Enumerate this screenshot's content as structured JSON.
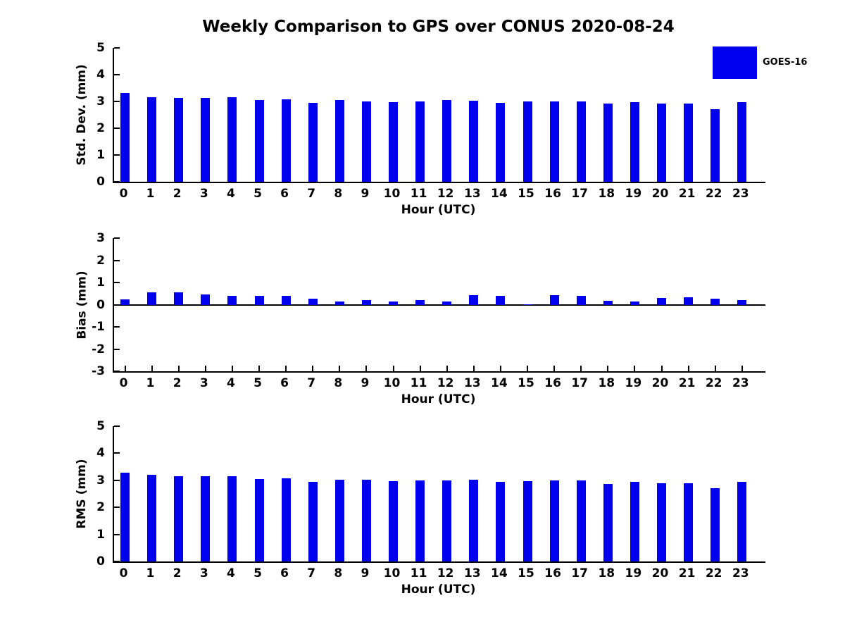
{
  "title": "Weekly Comparison to GPS over CONUS 2020-08-24",
  "legend": {
    "label": "GOES-16",
    "color": "#0000ee"
  },
  "chart_data": [
    {
      "type": "bar",
      "name": "std-dev",
      "ylabel": "Std. Dev. (mm)",
      "xlabel": "Hour (UTC)",
      "ylim": [
        0,
        5
      ],
      "yticks": [
        0,
        1,
        2,
        3,
        4,
        5
      ],
      "grid": false,
      "legend_position": "upper right outside",
      "categories": [
        0,
        1,
        2,
        3,
        4,
        5,
        6,
        7,
        8,
        9,
        10,
        11,
        12,
        13,
        14,
        15,
        16,
        17,
        18,
        19,
        20,
        21,
        22,
        23
      ],
      "series": [
        {
          "name": "GOES-16",
          "values": [
            3.31,
            3.17,
            3.12,
            3.12,
            3.15,
            3.04,
            3.07,
            2.94,
            3.04,
            3.01,
            2.97,
            3.01,
            3.04,
            3.02,
            2.96,
            3.01,
            3.01,
            2.99,
            2.91,
            2.98,
            2.91,
            2.91,
            2.72,
            2.98
          ]
        }
      ]
    },
    {
      "type": "bar",
      "name": "bias",
      "ylabel": "Bias (mm)",
      "xlabel": "Hour (UTC)",
      "ylim": [
        -3,
        3
      ],
      "yticks": [
        -3,
        -2,
        -1,
        0,
        1,
        2,
        3
      ],
      "grid": false,
      "categories": [
        0,
        1,
        2,
        3,
        4,
        5,
        6,
        7,
        8,
        9,
        10,
        11,
        12,
        13,
        14,
        15,
        16,
        17,
        18,
        19,
        20,
        21,
        22,
        23
      ],
      "series": [
        {
          "name": "GOES-16",
          "values": [
            0.26,
            0.57,
            0.57,
            0.48,
            0.42,
            0.42,
            0.42,
            0.29,
            0.15,
            0.22,
            0.17,
            0.22,
            0.15,
            0.43,
            0.4,
            0.04,
            0.43,
            0.4,
            0.19,
            0.15,
            0.31,
            0.36,
            0.29,
            0.21
          ]
        }
      ]
    },
    {
      "type": "bar",
      "name": "rms",
      "ylabel": "RMS (mm)",
      "xlabel": "Hour (UTC)",
      "ylim": [
        0,
        5
      ],
      "yticks": [
        0,
        1,
        2,
        3,
        4,
        5
      ],
      "grid": false,
      "categories": [
        0,
        1,
        2,
        3,
        4,
        5,
        6,
        7,
        8,
        9,
        10,
        11,
        12,
        13,
        14,
        15,
        16,
        17,
        18,
        19,
        20,
        21,
        22,
        23
      ],
      "series": [
        {
          "name": "GOES-16",
          "values": [
            3.28,
            3.2,
            3.15,
            3.15,
            3.15,
            3.05,
            3.08,
            2.94,
            3.01,
            3.01,
            2.96,
            3.0,
            3.0,
            3.02,
            2.95,
            2.97,
            3.0,
            3.0,
            2.86,
            2.95,
            2.9,
            2.9,
            2.71,
            2.95
          ]
        }
      ]
    }
  ]
}
